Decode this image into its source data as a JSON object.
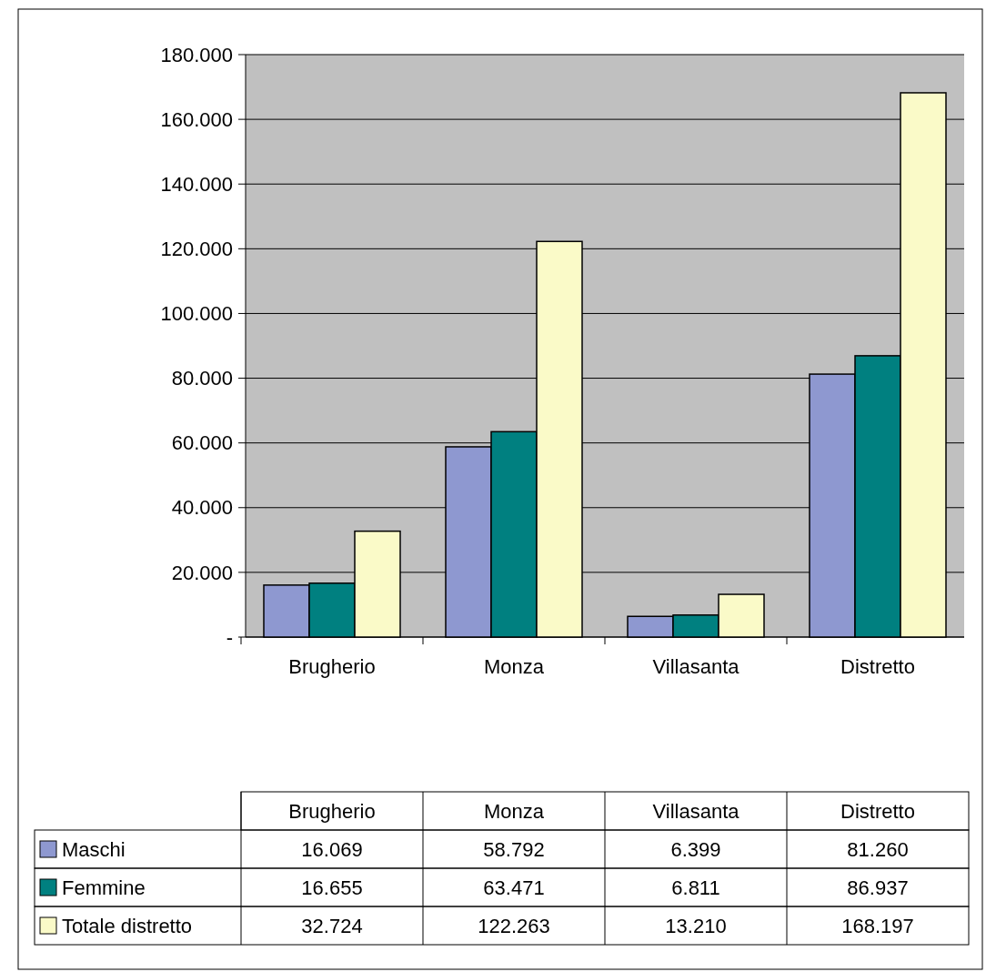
{
  "chart_data": {
    "type": "bar",
    "categories": [
      "Brugherio",
      "Monza",
      "Villasanta",
      "Distretto"
    ],
    "series": [
      {
        "name": "Maschi",
        "color": "#8e98d0",
        "values": [
          16069,
          58792,
          6399,
          81260
        ],
        "value_labels": [
          "16.069",
          "58.792",
          "6.399",
          "81.260"
        ]
      },
      {
        "name": "Femmine",
        "color": "#008080",
        "values": [
          16655,
          63471,
          6811,
          86937
        ],
        "value_labels": [
          "16.655",
          "63.471",
          "6.811",
          "86.937"
        ]
      },
      {
        "name": "Totale distretto",
        "color": "#fafac8",
        "values": [
          32724,
          122263,
          13210,
          168197
        ],
        "value_labels": [
          "32.724",
          "122.263",
          "13.210",
          "168.197"
        ]
      }
    ],
    "ylim": [
      0,
      180000
    ],
    "yticks": [
      {
        "value": 0,
        "label": "-"
      },
      {
        "value": 20000,
        "label": "20.000"
      },
      {
        "value": 40000,
        "label": "40.000"
      },
      {
        "value": 60000,
        "label": "60.000"
      },
      {
        "value": 80000,
        "label": "80.000"
      },
      {
        "value": 100000,
        "label": "100.000"
      },
      {
        "value": 120000,
        "label": "120.000"
      },
      {
        "value": 140000,
        "label": "140.000"
      },
      {
        "value": 160000,
        "label": "160.000"
      },
      {
        "value": 180000,
        "label": "180.000"
      }
    ],
    "grid": "y",
    "legend": "bottom"
  }
}
